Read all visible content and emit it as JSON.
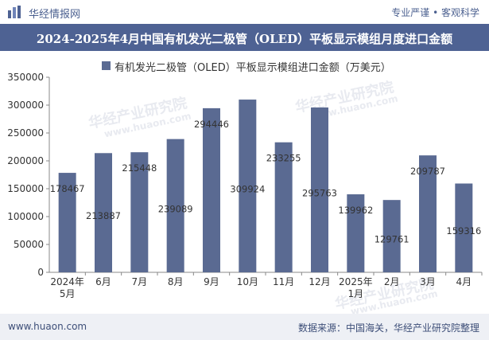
{
  "header": {
    "brand": "华经情报网",
    "tagline": "专业严谨 • 客观科学"
  },
  "title": "2024-2025年4月中国有机发光二极管（OLED）平板显示模组月度进口金额",
  "footer": {
    "website": "www.huaon.com",
    "source": "数据来源：中国海关，华经产业研究院整理"
  },
  "watermarks": [
    "华经产业研究院",
    "www.huaon.com",
    "华经产业研究院",
    "www.huaon.com",
    "华经产业研究院",
    "www.huaon.com"
  ],
  "colors": {
    "bar": "#5a6a92",
    "title_bg": "#4e6293",
    "text": "#333333"
  },
  "chart_data": {
    "type": "bar",
    "title": "2024-2025年4月中国有机发光二极管（OLED）平板显示模组月度进口金额",
    "categories": [
      "2024年\n5月",
      "6月",
      "7月",
      "8月",
      "9月",
      "10月",
      "11月",
      "12月",
      "2025年\n1月",
      "2月",
      "3月",
      "4月"
    ],
    "series": [
      {
        "name": "有机发光二极管（OLED）平板显示模组进口金额（万美元）",
        "values": [
          178467,
          213887,
          215448,
          239089,
          294446,
          309924,
          233255,
          295763,
          139962,
          129761,
          209787,
          159316
        ]
      }
    ],
    "data_labels": [
      "178467",
      "213887",
      "215448",
      "239089",
      "294446",
      "309924",
      "233255",
      "295763",
      "139962",
      "129761",
      "209787",
      "159316"
    ],
    "yticks": [
      "0",
      "50000",
      "100000",
      "150000",
      "200000",
      "250000",
      "300000",
      "350000"
    ],
    "ylim": [
      0,
      350000
    ],
    "xlabel": "",
    "ylabel": "",
    "legend": "top-center"
  }
}
